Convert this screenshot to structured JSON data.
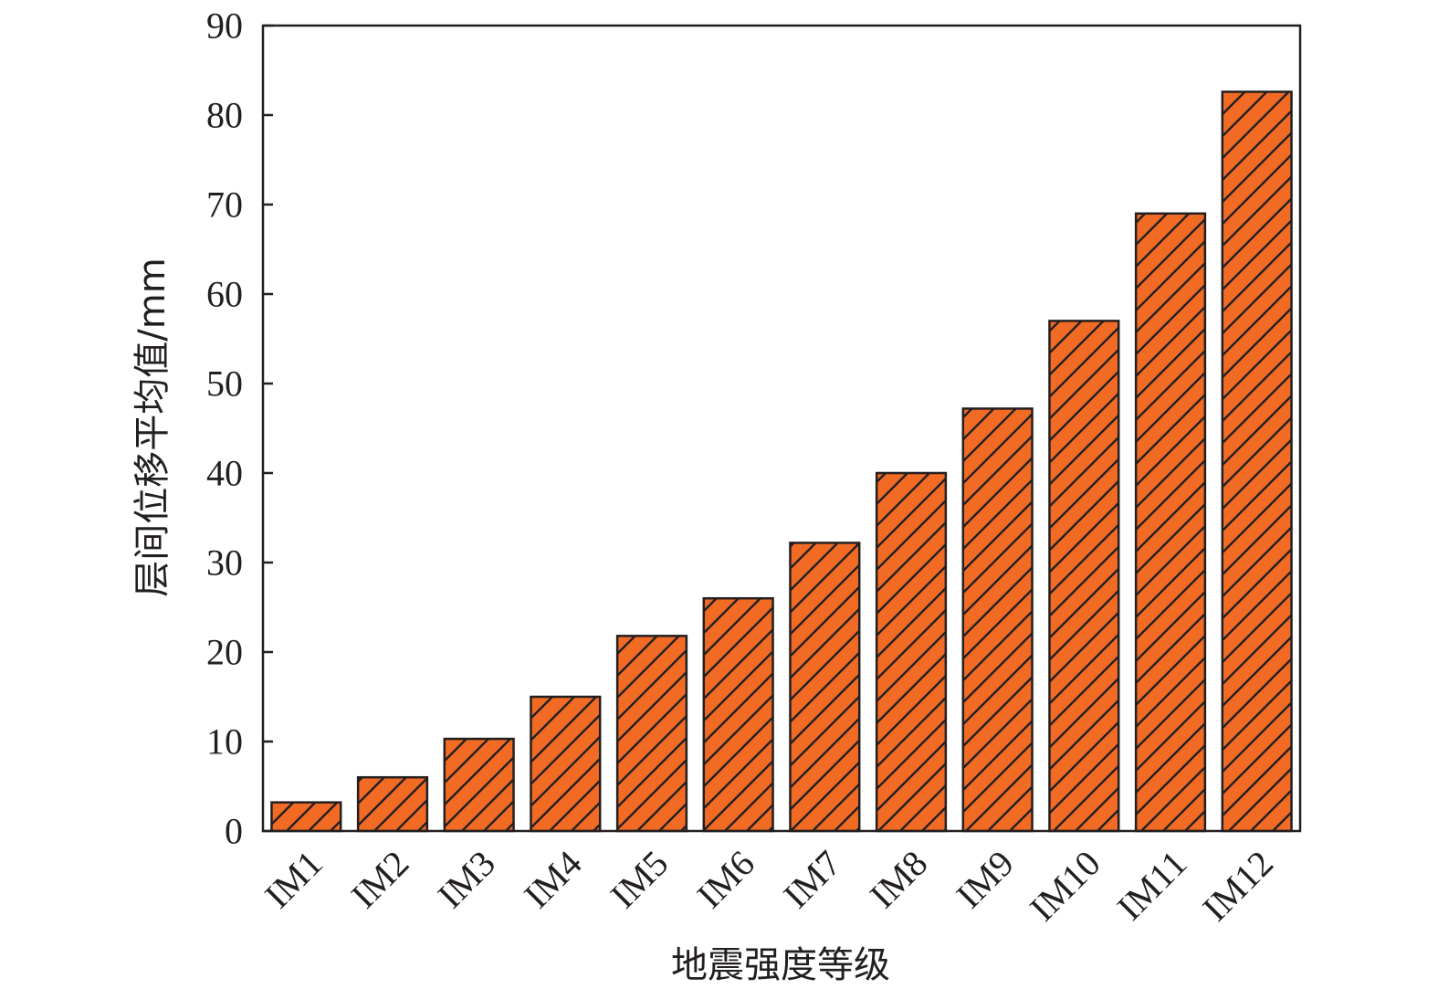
{
  "chart_data": {
    "type": "bar",
    "title": "",
    "xlabel": "地震强度等级",
    "ylabel": "层间位移平均值/mm",
    "categories": [
      "IM1",
      "IM2",
      "IM3",
      "IM4",
      "IM5",
      "IM6",
      "IM7",
      "IM8",
      "IM9",
      "IM10",
      "IM11",
      "IM12"
    ],
    "series": [
      {
        "values": [
          3.2,
          6.0,
          10.3,
          15.0,
          21.8,
          26.0,
          32.2,
          40.0,
          47.2,
          57.0,
          69.0,
          82.6
        ]
      }
    ],
    "ylim": [
      0,
      90
    ],
    "yticks": [
      0,
      10,
      20,
      30,
      40,
      50,
      60,
      70,
      80,
      90
    ],
    "grid": false,
    "bar_color": "#f26b24",
    "hatch": "diagonal",
    "edge_color": "#231f20"
  }
}
